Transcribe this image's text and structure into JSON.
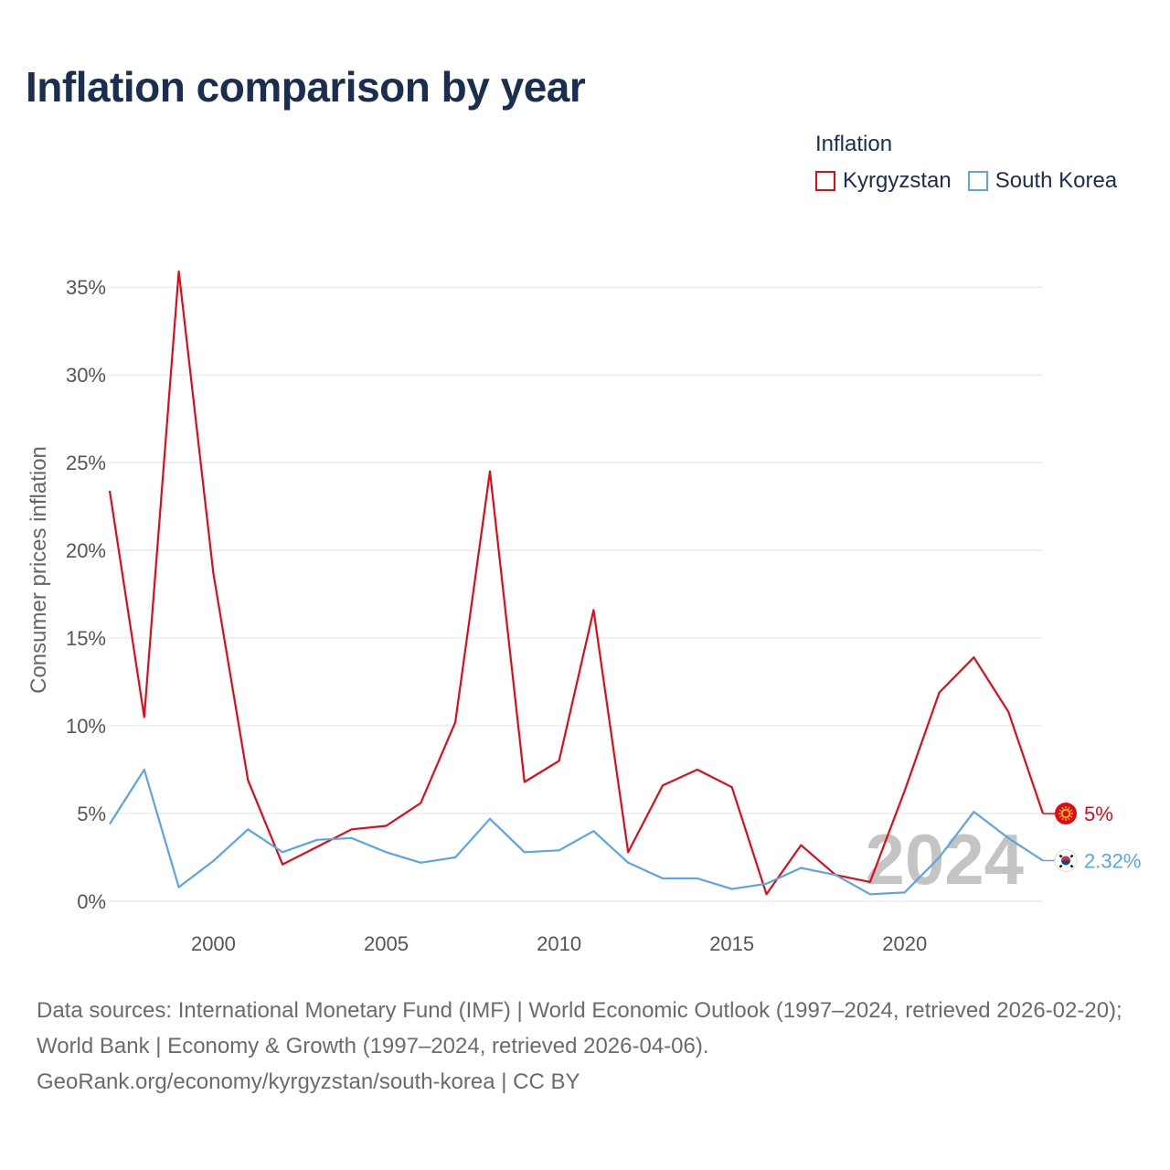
{
  "title": "Inflation comparison by year",
  "legend": {
    "title": "Inflation",
    "items": [
      {
        "label": "Kyrgyzstan",
        "color": "#e30a17"
      },
      {
        "label": "South Korea",
        "color": "#5ba4e6"
      }
    ]
  },
  "chart_data": {
    "type": "line",
    "title": "Inflation comparison by year",
    "xlabel": "",
    "ylabel": "Consumer prices inflation",
    "x": [
      1997,
      1998,
      1999,
      2000,
      2001,
      2002,
      2003,
      2004,
      2005,
      2006,
      2007,
      2008,
      2009,
      2010,
      2011,
      2012,
      2013,
      2014,
      2015,
      2016,
      2017,
      2018,
      2019,
      2020,
      2021,
      2022,
      2023,
      2024
    ],
    "xlim": [
      1997,
      2024
    ],
    "ylim": [
      0,
      36
    ],
    "x_ticks": [
      2000,
      2005,
      2010,
      2015,
      2020
    ],
    "y_ticks": [
      0,
      5,
      10,
      15,
      20,
      25,
      30,
      35
    ],
    "y_tick_labels": [
      "0%",
      "5%",
      "10%",
      "15%",
      "20%",
      "25%",
      "30%",
      "35%"
    ],
    "grid": true,
    "series": [
      {
        "name": "Kyrgyzstan",
        "color": "#e30a17",
        "values": [
          23.4,
          10.5,
          35.9,
          18.7,
          6.9,
          2.1,
          3.1,
          4.1,
          4.3,
          5.6,
          10.2,
          24.5,
          6.8,
          8.0,
          16.6,
          2.8,
          6.6,
          7.5,
          6.5,
          0.4,
          3.2,
          1.5,
          1.1,
          6.3,
          11.9,
          13.9,
          10.8,
          5.0
        ],
        "end_label": "5%"
      },
      {
        "name": "South Korea",
        "color": "#5ba4e6",
        "values": [
          4.4,
          7.5,
          0.8,
          2.3,
          4.1,
          2.8,
          3.5,
          3.6,
          2.8,
          2.2,
          2.5,
          4.7,
          2.8,
          2.9,
          4.0,
          2.2,
          1.3,
          1.3,
          0.7,
          1.0,
          1.9,
          1.5,
          0.4,
          0.5,
          2.5,
          5.1,
          3.6,
          2.32
        ],
        "end_label": "2.32%"
      }
    ],
    "annotation": "2024"
  },
  "footer": {
    "line1": "Data sources: International Monetary Fund (IMF) | World Economic Outlook (1997–2024, retrieved 2026-02-20); World Bank | Economy & Growth (1997–2024, retrieved 2026-04-06).",
    "line2": "GeoRank.org/economy/kyrgyzstan/south-korea | CC BY"
  }
}
